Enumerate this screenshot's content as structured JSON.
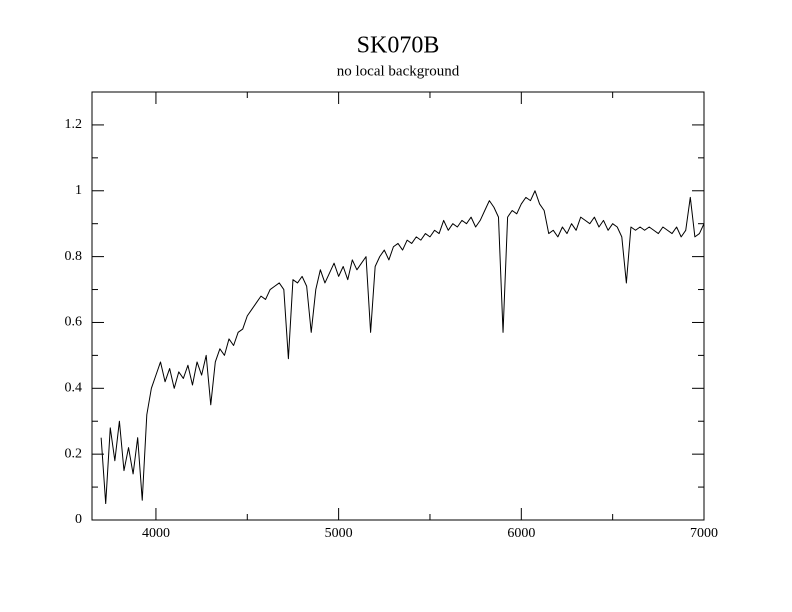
{
  "chart_data": {
    "type": "line",
    "title": "SK070B",
    "subtitle": "no local background",
    "x": [
      3700,
      3725,
      3750,
      3775,
      3800,
      3825,
      3850,
      3875,
      3900,
      3925,
      3950,
      3975,
      4000,
      4025,
      4050,
      4075,
      4100,
      4125,
      4150,
      4175,
      4200,
      4225,
      4250,
      4275,
      4300,
      4325,
      4350,
      4375,
      4400,
      4425,
      4450,
      4475,
      4500,
      4525,
      4550,
      4575,
      4600,
      4625,
      4650,
      4675,
      4700,
      4725,
      4750,
      4775,
      4800,
      4825,
      4850,
      4875,
      4900,
      4925,
      4950,
      4975,
      5000,
      5025,
      5050,
      5075,
      5100,
      5125,
      5150,
      5175,
      5200,
      5225,
      5250,
      5275,
      5300,
      5325,
      5350,
      5375,
      5400,
      5425,
      5450,
      5475,
      5500,
      5525,
      5550,
      5575,
      5600,
      5625,
      5650,
      5675,
      5700,
      5725,
      5750,
      5775,
      5800,
      5825,
      5850,
      5875,
      5900,
      5925,
      5950,
      5975,
      6000,
      6025,
      6050,
      6075,
      6100,
      6125,
      6150,
      6175,
      6200,
      6225,
      6250,
      6275,
      6300,
      6325,
      6350,
      6375,
      6400,
      6425,
      6450,
      6475,
      6500,
      6525,
      6550,
      6575,
      6600,
      6625,
      6650,
      6675,
      6700,
      6725,
      6750,
      6775,
      6800,
      6825,
      6850,
      6875,
      6900,
      6925,
      6950,
      6975,
      7000
    ],
    "series": [
      {
        "color": "#000000",
        "values": [
          0.25,
          0.05,
          0.28,
          0.18,
          0.3,
          0.15,
          0.22,
          0.14,
          0.25,
          0.06,
          0.32,
          0.4,
          0.44,
          0.48,
          0.42,
          0.46,
          0.4,
          0.45,
          0.43,
          0.47,
          0.41,
          0.48,
          0.44,
          0.5,
          0.35,
          0.48,
          0.52,
          0.5,
          0.55,
          0.53,
          0.57,
          0.58,
          0.62,
          0.64,
          0.66,
          0.68,
          0.67,
          0.7,
          0.71,
          0.72,
          0.7,
          0.49,
          0.73,
          0.72,
          0.74,
          0.71,
          0.57,
          0.7,
          0.76,
          0.72,
          0.75,
          0.78,
          0.74,
          0.77,
          0.73,
          0.79,
          0.76,
          0.78,
          0.8,
          0.57,
          0.77,
          0.8,
          0.82,
          0.79,
          0.83,
          0.84,
          0.82,
          0.85,
          0.84,
          0.86,
          0.85,
          0.87,
          0.86,
          0.88,
          0.87,
          0.91,
          0.88,
          0.9,
          0.89,
          0.91,
          0.9,
          0.92,
          0.89,
          0.91,
          0.94,
          0.97,
          0.95,
          0.92,
          0.57,
          0.92,
          0.94,
          0.93,
          0.96,
          0.98,
          0.97,
          1.0,
          0.96,
          0.94,
          0.87,
          0.88,
          0.86,
          0.89,
          0.87,
          0.9,
          0.88,
          0.92,
          0.91,
          0.9,
          0.92,
          0.89,
          0.91,
          0.88,
          0.9,
          0.89,
          0.86,
          0.72,
          0.89,
          0.88,
          0.89,
          0.88,
          0.89,
          0.88,
          0.87,
          0.89,
          0.88,
          0.87,
          0.89,
          0.86,
          0.88,
          0.98,
          0.86,
          0.87,
          0.9
        ]
      }
    ],
    "xlim": [
      3650,
      7000
    ],
    "xticks": [
      4000,
      5000,
      6000,
      7000
    ],
    "xminorticks": [
      4500,
      5500,
      6500
    ],
    "ylim": [
      0,
      1.3
    ],
    "yticks": [
      0,
      0.2,
      0.4,
      0.6,
      0.8,
      1,
      1.2
    ],
    "yminorticks": [
      0.1,
      0.3,
      0.5,
      0.7,
      0.9,
      1.1
    ]
  }
}
